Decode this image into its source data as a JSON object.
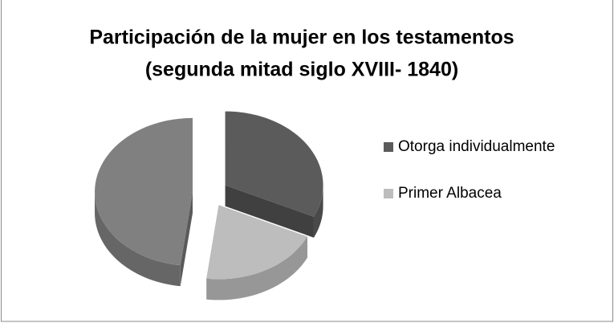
{
  "chart_data": {
    "type": "pie3d",
    "title": [
      "Participación de la mujer en los testamentos",
      "(segunda mitad siglo XVIII- 1840)"
    ],
    "categories": [
      "Otorga individualmente",
      "Primer Albacea",
      null
    ],
    "values": [
      32,
      20,
      48
    ],
    "colors": [
      "#5b5b5b",
      "#bdbdbd",
      "#808080"
    ],
    "legend": "right",
    "exploded": true
  }
}
